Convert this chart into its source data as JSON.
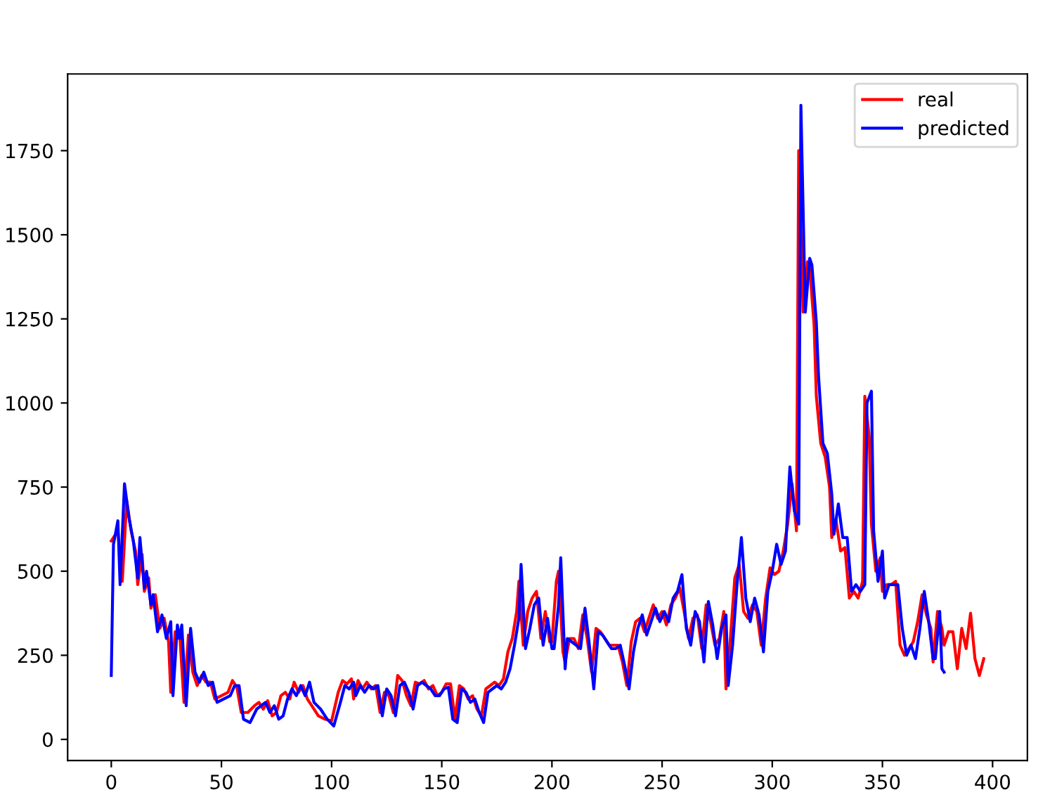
{
  "chart_data": {
    "type": "line",
    "xlim": [
      -19.8,
      415.8
    ],
    "ylim": [
      -63,
      1978
    ],
    "xticks": [
      0,
      50,
      100,
      150,
      200,
      250,
      300,
      350,
      400
    ],
    "yticks": [
      0,
      250,
      500,
      750,
      1000,
      1250,
      1500,
      1750
    ],
    "grid": false,
    "legend": "top right",
    "marker": "none",
    "line_style": "solid",
    "series": [
      {
        "name": "real",
        "color": "#ff0000",
        "x": [
          0,
          3,
          5,
          7,
          9,
          11,
          12,
          14,
          15,
          17,
          18,
          20,
          22,
          24,
          26,
          27,
          29,
          30,
          31,
          33,
          35,
          37,
          39,
          41,
          43,
          45,
          47,
          50,
          53,
          55,
          57,
          59,
          62,
          65,
          67,
          69,
          71,
          73,
          75,
          77,
          79,
          81,
          83,
          85,
          87,
          89,
          91,
          94,
          97,
          100,
          103,
          105,
          107,
          109,
          110,
          112,
          114,
          116,
          118,
          120,
          122,
          124,
          126,
          128,
          130,
          132,
          134,
          136,
          138,
          140,
          142,
          144,
          146,
          148,
          150,
          152,
          154,
          156,
          158,
          160,
          162,
          164,
          166,
          168,
          170,
          172,
          174,
          176,
          178,
          180,
          182,
          184,
          185,
          187,
          189,
          191,
          193,
          195,
          197,
          199,
          200,
          202,
          203,
          205,
          206,
          208,
          210,
          212,
          214,
          216,
          218,
          220,
          222,
          224,
          226,
          228,
          230,
          232,
          234,
          236,
          238,
          240,
          242,
          244,
          246,
          248,
          250,
          252,
          254,
          256,
          258,
          260,
          262,
          264,
          266,
          268,
          270,
          272,
          274,
          276,
          278,
          279,
          281,
          283,
          285,
          287,
          289,
          291,
          293,
          295,
          297,
          299,
          301,
          303,
          305,
          307,
          309,
          311,
          312,
          314,
          316,
          317,
          319,
          320,
          322,
          324,
          326,
          327,
          329,
          331,
          333,
          335,
          337,
          339,
          341,
          342,
          344,
          345,
          347,
          349,
          350,
          352,
          354,
          356,
          358,
          360,
          362,
          364,
          366,
          368,
          370,
          372,
          373,
          375,
          377,
          378,
          380,
          382,
          384,
          386,
          388,
          390,
          392,
          394,
          396
        ],
        "values": [
          590,
          620,
          470,
          710,
          620,
          560,
          460,
          550,
          440,
          480,
          390,
          430,
          330,
          360,
          290,
          140,
          320,
          300,
          320,
          110,
          310,
          200,
          160,
          190,
          170,
          170,
          120,
          130,
          140,
          175,
          155,
          80,
          80,
          100,
          110,
          90,
          115,
          70,
          80,
          130,
          140,
          120,
          170,
          140,
          160,
          120,
          100,
          70,
          60,
          55,
          140,
          175,
          165,
          180,
          120,
          175,
          150,
          170,
          150,
          160,
          80,
          140,
          130,
          80,
          190,
          175,
          130,
          100,
          170,
          165,
          175,
          150,
          160,
          130,
          140,
          165,
          165,
          60,
          160,
          150,
          120,
          130,
          90,
          70,
          150,
          160,
          170,
          160,
          180,
          260,
          300,
          380,
          470,
          280,
          380,
          420,
          440,
          300,
          380,
          290,
          290,
          470,
          500,
          260,
          230,
          300,
          300,
          270,
          370,
          300,
          200,
          330,
          320,
          300,
          280,
          280,
          280,
          230,
          160,
          290,
          350,
          360,
          320,
          360,
          400,
          360,
          380,
          340,
          400,
          420,
          450,
          380,
          300,
          360,
          370,
          270,
          400,
          350,
          280,
          300,
          380,
          150,
          300,
          480,
          520,
          380,
          360,
          400,
          380,
          280,
          420,
          510,
          490,
          500,
          560,
          640,
          760,
          620,
          1750,
          1270,
          1420,
          1400,
          1230,
          1020,
          880,
          840,
          750,
          600,
          650,
          560,
          570,
          420,
          440,
          420,
          470,
          1020,
          900,
          640,
          500,
          540,
          440,
          460,
          460,
          470,
          280,
          250,
          270,
          290,
          350,
          430,
          370,
          330,
          230,
          380,
          330,
          280,
          320,
          320,
          210,
          330,
          270,
          375,
          240,
          190,
          240
        ]
      },
      {
        "name": "predicted",
        "color": "#0000ff",
        "x": [
          0,
          1,
          3,
          4,
          6,
          8,
          10,
          12,
          13,
          15,
          16,
          18,
          19,
          21,
          23,
          25,
          27,
          28,
          30,
          31,
          32,
          34,
          36,
          38,
          40,
          42,
          44,
          46,
          48,
          51,
          54,
          56,
          58,
          60,
          63,
          66,
          68,
          70,
          72,
          74,
          76,
          78,
          80,
          82,
          84,
          86,
          88,
          90,
          92,
          95,
          98,
          101,
          104,
          106,
          108,
          110,
          111,
          113,
          115,
          117,
          119,
          121,
          123,
          125,
          127,
          129,
          131,
          133,
          135,
          137,
          139,
          141,
          143,
          145,
          147,
          149,
          151,
          153,
          155,
          157,
          159,
          161,
          163,
          165,
          167,
          169,
          171,
          173,
          175,
          177,
          179,
          181,
          183,
          185,
          186,
          188,
          190,
          192,
          194,
          196,
          198,
          200,
          201,
          203,
          204,
          206,
          207,
          209,
          211,
          213,
          215,
          217,
          219,
          221,
          223,
          225,
          227,
          229,
          231,
          233,
          235,
          237,
          239,
          241,
          243,
          245,
          247,
          249,
          251,
          253,
          255,
          257,
          259,
          261,
          263,
          265,
          267,
          269,
          271,
          273,
          275,
          277,
          279,
          280,
          282,
          284,
          286,
          288,
          290,
          292,
          294,
          296,
          298,
          300,
          302,
          304,
          306,
          308,
          310,
          312,
          313,
          315,
          317,
          318,
          320,
          321,
          323,
          325,
          327,
          328,
          330,
          332,
          334,
          336,
          338,
          340,
          342,
          343,
          345,
          346,
          348,
          350,
          351,
          353,
          355,
          357,
          359,
          361,
          363,
          365,
          367,
          369,
          371,
          373,
          374,
          376,
          377,
          378
        ],
        "values": [
          190,
          580,
          650,
          460,
          760,
          660,
          590,
          480,
          600,
          450,
          500,
          400,
          430,
          320,
          370,
          300,
          350,
          130,
          340,
          300,
          340,
          100,
          330,
          200,
          170,
          200,
          160,
          170,
          110,
          120,
          130,
          160,
          160,
          60,
          50,
          90,
          100,
          110,
          80,
          100,
          60,
          70,
          120,
          150,
          130,
          160,
          130,
          170,
          110,
          90,
          60,
          40,
          110,
          160,
          150,
          170,
          130,
          160,
          140,
          160,
          150,
          160,
          70,
          150,
          130,
          70,
          160,
          170,
          140,
          90,
          160,
          170,
          160,
          150,
          130,
          130,
          150,
          155,
          60,
          50,
          150,
          140,
          110,
          120,
          80,
          50,
          140,
          150,
          160,
          150,
          170,
          210,
          280,
          360,
          520,
          270,
          330,
          400,
          420,
          280,
          360,
          270,
          270,
          400,
          540,
          210,
          300,
          290,
          280,
          270,
          390,
          280,
          150,
          320,
          310,
          290,
          270,
          270,
          280,
          220,
          150,
          260,
          330,
          370,
          310,
          350,
          390,
          350,
          380,
          350,
          420,
          440,
          490,
          330,
          280,
          380,
          350,
          230,
          410,
          340,
          240,
          330,
          370,
          160,
          280,
          460,
          600,
          420,
          350,
          420,
          370,
          260,
          440,
          500,
          580,
          520,
          560,
          810,
          680,
          640,
          1885,
          1270,
          1430,
          1410,
          1240,
          1080,
          880,
          850,
          730,
          610,
          700,
          600,
          600,
          440,
          460,
          440,
          460,
          1000,
          1035,
          620,
          470,
          560,
          420,
          460,
          460,
          460,
          330,
          250,
          280,
          240,
          330,
          440,
          350,
          240,
          240,
          380,
          210,
          200
        ]
      }
    ]
  }
}
